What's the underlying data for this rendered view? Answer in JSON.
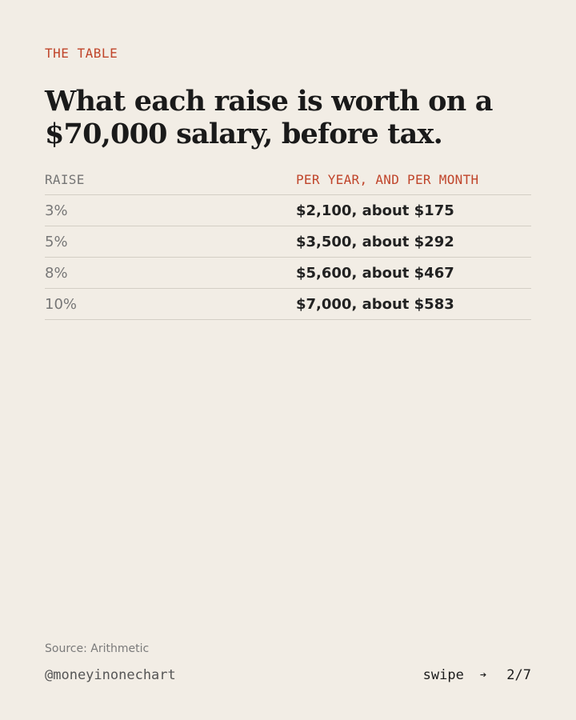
{
  "eyebrow": "THE TABLE",
  "headline": "What each raise is worth on a $70,000 salary, before tax.",
  "table": {
    "headers": {
      "raise": "RAISE",
      "value": "PER YEAR, AND PER MONTH"
    },
    "rows": [
      {
        "raise": "3%",
        "value": "$2,100, about $175"
      },
      {
        "raise": "5%",
        "value": "$3,500, about $292"
      },
      {
        "raise": "8%",
        "value": "$5,600, about $467"
      },
      {
        "raise": "10%",
        "value": "$7,000, about $583"
      }
    ]
  },
  "footer": {
    "source": "Source: Arithmetic",
    "handle": "@moneyinonechart",
    "swipe_label": "swipe",
    "arrow_icon": "arrow-right-icon",
    "page_indicator": "2/7"
  },
  "colors": {
    "background": "#f2ede5",
    "accent": "#c0452b",
    "text": "#1c1c1c",
    "muted": "#777777",
    "rule": "#d3cec5"
  }
}
